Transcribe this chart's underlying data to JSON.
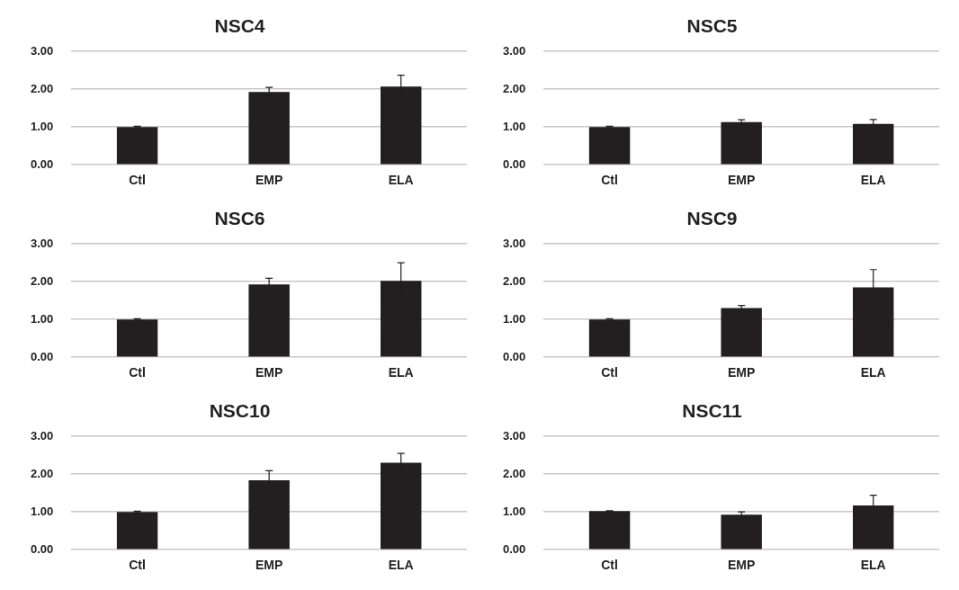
{
  "chart_data": [
    {
      "type": "bar",
      "title": "NSC4",
      "categories": [
        "Ctl",
        "EMP",
        "ELA"
      ],
      "values": [
        1.0,
        1.93,
        2.07
      ],
      "errors": [
        0.02,
        0.12,
        0.3
      ],
      "color": "#231f20",
      "ylim": [
        0,
        3
      ],
      "yticks": [
        {
          "value": 0,
          "label": "0.00"
        },
        {
          "value": 1,
          "label": "1.00"
        },
        {
          "value": 2,
          "label": "2.00"
        },
        {
          "value": 3,
          "label": "3.00"
        }
      ],
      "grid": "y"
    },
    {
      "type": "bar",
      "title": "NSC5",
      "categories": [
        "Ctl",
        "EMP",
        "ELA"
      ],
      "values": [
        1.0,
        1.13,
        1.08
      ],
      "errors": [
        0.02,
        0.06,
        0.12
      ],
      "color": "#231f20",
      "ylim": [
        0,
        3
      ],
      "yticks": [
        {
          "value": 0,
          "label": "0.00"
        },
        {
          "value": 1,
          "label": "1.00"
        },
        {
          "value": 2,
          "label": "2.00"
        },
        {
          "value": 3,
          "label": "3.00"
        }
      ],
      "grid": "y"
    },
    {
      "type": "bar",
      "title": "NSC6",
      "categories": [
        "Ctl",
        "EMP",
        "ELA"
      ],
      "values": [
        1.0,
        1.93,
        2.02
      ],
      "errors": [
        0.02,
        0.16,
        0.48
      ],
      "color": "#231f20",
      "ylim": [
        0,
        3
      ],
      "yticks": [
        {
          "value": 0,
          "label": "0.00"
        },
        {
          "value": 1,
          "label": "1.00"
        },
        {
          "value": 2,
          "label": "2.00"
        },
        {
          "value": 3,
          "label": "3.00"
        }
      ],
      "grid": "y"
    },
    {
      "type": "bar",
      "title": "NSC9",
      "categories": [
        "Ctl",
        "EMP",
        "ELA"
      ],
      "values": [
        1.0,
        1.3,
        1.85
      ],
      "errors": [
        0.02,
        0.07,
        0.47
      ],
      "color": "#231f20",
      "ylim": [
        0,
        3
      ],
      "yticks": [
        {
          "value": 0,
          "label": "0.00"
        },
        {
          "value": 1,
          "label": "1.00"
        },
        {
          "value": 2,
          "label": "2.00"
        },
        {
          "value": 3,
          "label": "3.00"
        }
      ],
      "grid": "y"
    },
    {
      "type": "bar",
      "title": "NSC10",
      "categories": [
        "Ctl",
        "EMP",
        "ELA"
      ],
      "values": [
        1.0,
        1.84,
        2.3
      ],
      "errors": [
        0.02,
        0.25,
        0.25
      ],
      "color": "#231f20",
      "ylim": [
        0,
        3
      ],
      "yticks": [
        {
          "value": 0,
          "label": "0.00"
        },
        {
          "value": 1,
          "label": "1.00"
        },
        {
          "value": 2,
          "label": "2.00"
        },
        {
          "value": 3,
          "label": "3.00"
        }
      ],
      "grid": "y"
    },
    {
      "type": "bar",
      "title": "NSC11",
      "categories": [
        "Ctl",
        "EMP",
        "ELA"
      ],
      "values": [
        1.02,
        0.93,
        1.17
      ],
      "errors": [
        0.01,
        0.07,
        0.27
      ],
      "color": "#231f20",
      "ylim": [
        0,
        3
      ],
      "yticks": [
        {
          "value": 0,
          "label": "0.00"
        },
        {
          "value": 1,
          "label": "1.00"
        },
        {
          "value": 2,
          "label": "2.00"
        },
        {
          "value": 3,
          "label": "3.00"
        }
      ],
      "grid": "y"
    }
  ]
}
